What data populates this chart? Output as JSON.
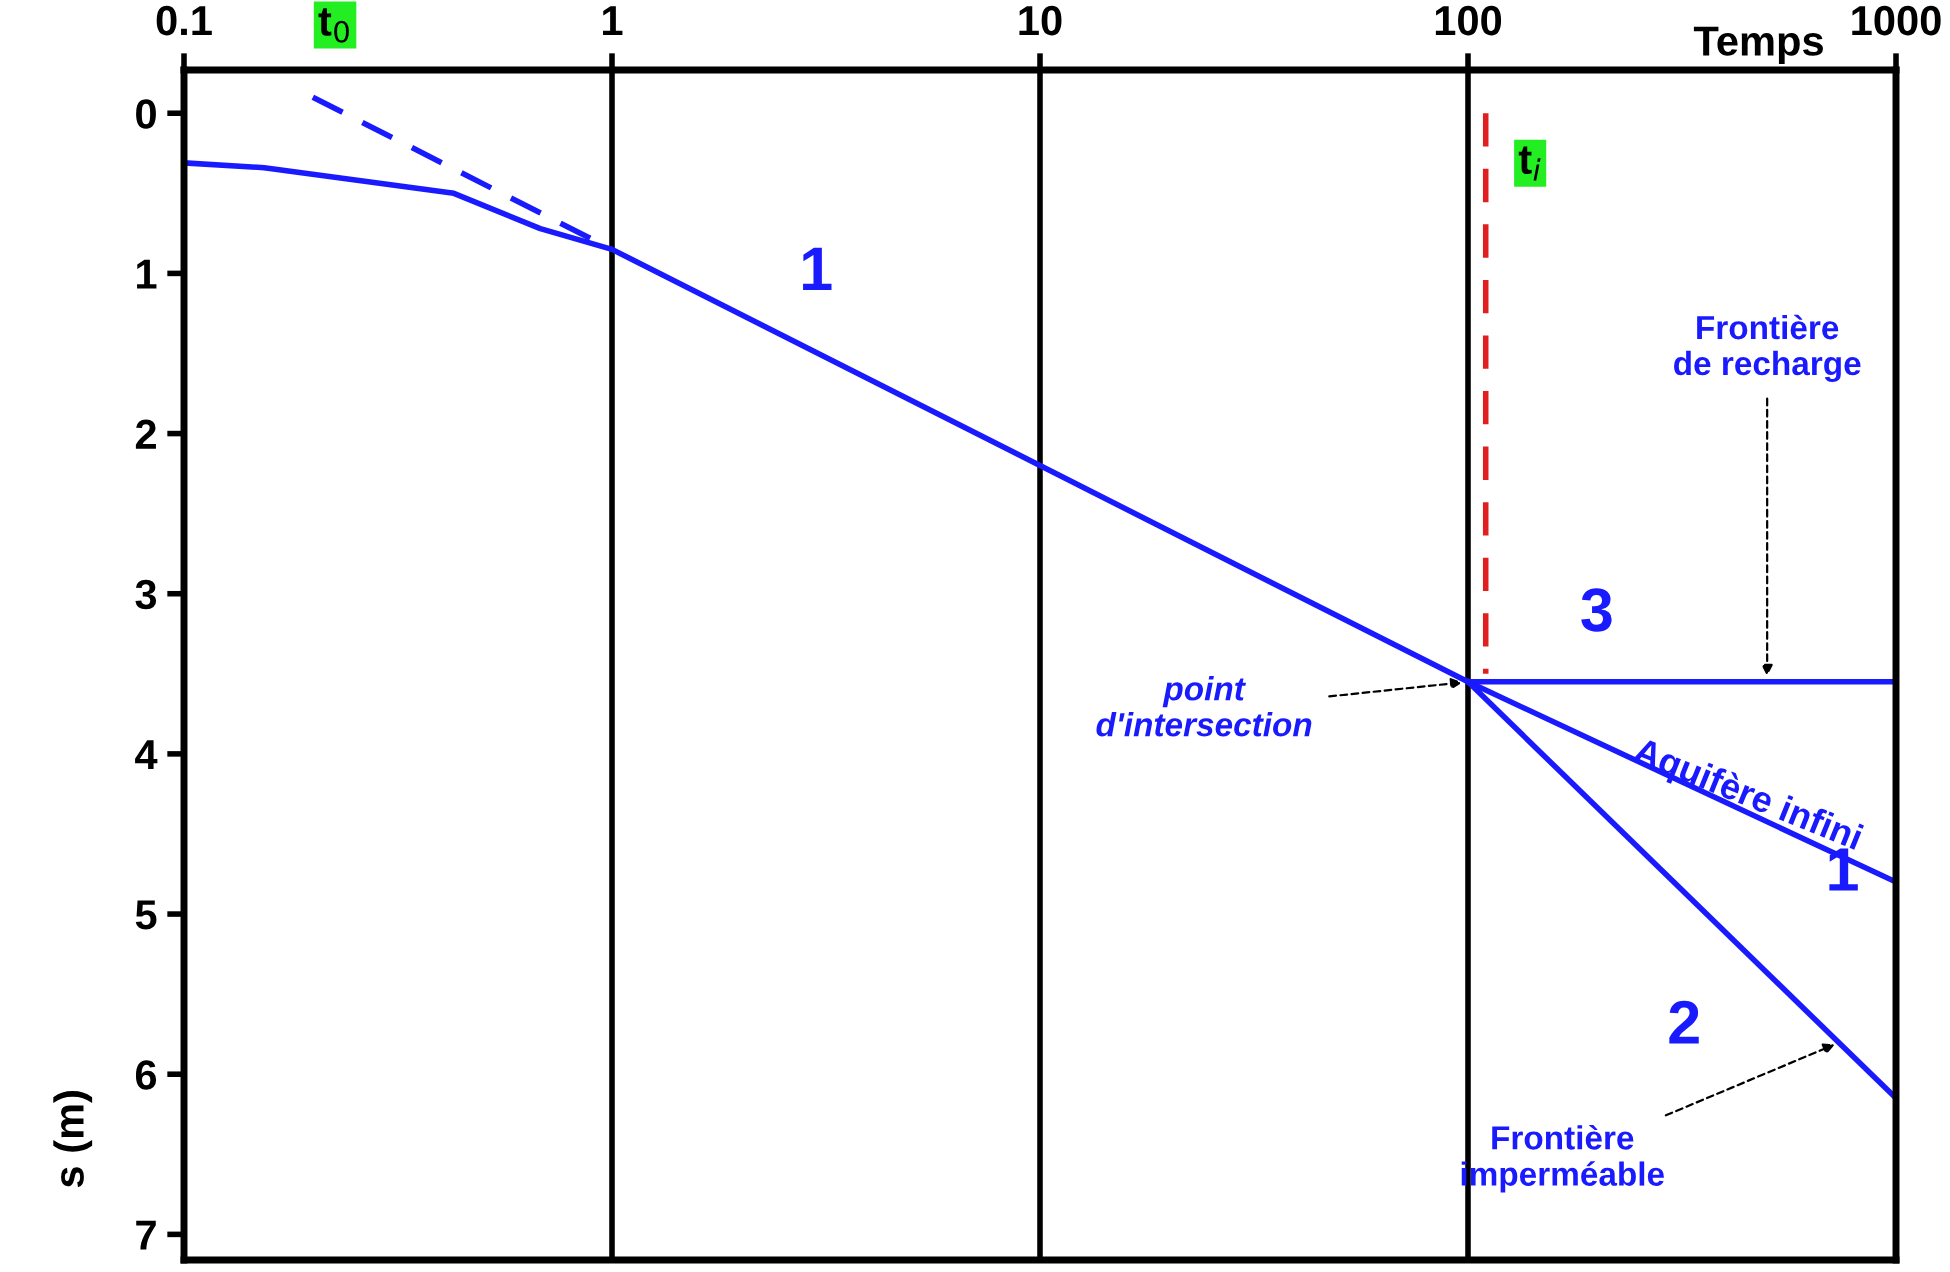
{
  "chart_data": {
    "type": "line",
    "xlabel": "Temps",
    "ylabel": "s (m)",
    "log": "x",
    "xlim": [
      0.1,
      1000
    ],
    "xticks": [
      0.1,
      1,
      10,
      100,
      1000
    ],
    "ylim": [
      7.16,
      -0.27
    ],
    "yticks": [
      0,
      1,
      2,
      3,
      4,
      5,
      6,
      7
    ],
    "grid": "x",
    "legend": false,
    "series": [
      {
        "color": "#1a1aff",
        "x": [
          0.1,
          0.154,
          0.427,
          0.68,
          1,
          10,
          100,
          1000
        ],
        "values": [
          0.31,
          0.34,
          0.5,
          0.72,
          0.85,
          2.2,
          3.55,
          4.8
        ]
      },
      {
        "color": "#1a1aff",
        "line_style": "dashed",
        "x": [
          0.2,
          1
        ],
        "values": [
          -0.1,
          0.85
        ]
      },
      {
        "color": "#1a1aff",
        "x": [
          100,
          1000
        ],
        "values": [
          3.55,
          3.55
        ]
      },
      {
        "color": "#1a1aff",
        "x": [
          100,
          1000
        ],
        "values": [
          3.55,
          6.15
        ]
      },
      {
        "color": "#e02020",
        "line_style": "dashed",
        "x": [
          110,
          110
        ],
        "values": [
          0,
          3.5
        ]
      }
    ],
    "annotations": [
      {
        "text": "t$_{0}$",
        "x": 0.2,
        "y": -0.1
      },
      {
        "text": "t$_{i}$",
        "x": 110,
        "y": 0
      },
      {
        "text": "1",
        "x": 3,
        "y": 1.49
      },
      {
        "text": "3",
        "x": 200,
        "y": 3.55
      },
      {
        "text": "Aquifère infini",
        "x": 450,
        "y": 4.3
      },
      {
        "text": "1",
        "x": 750,
        "y": 4.65
      },
      {
        "text": "2",
        "x": 320,
        "y": 4.86
      },
      {
        "text": "point\nd'intersection",
        "x": 100,
        "y": 3.55
      },
      {
        "text": "Frontière\nde recharge",
        "x": 500,
        "y": 3.55
      },
      {
        "text": "Frontière\nimperméable",
        "x": 740,
        "y": 5.8
      }
    ]
  }
}
